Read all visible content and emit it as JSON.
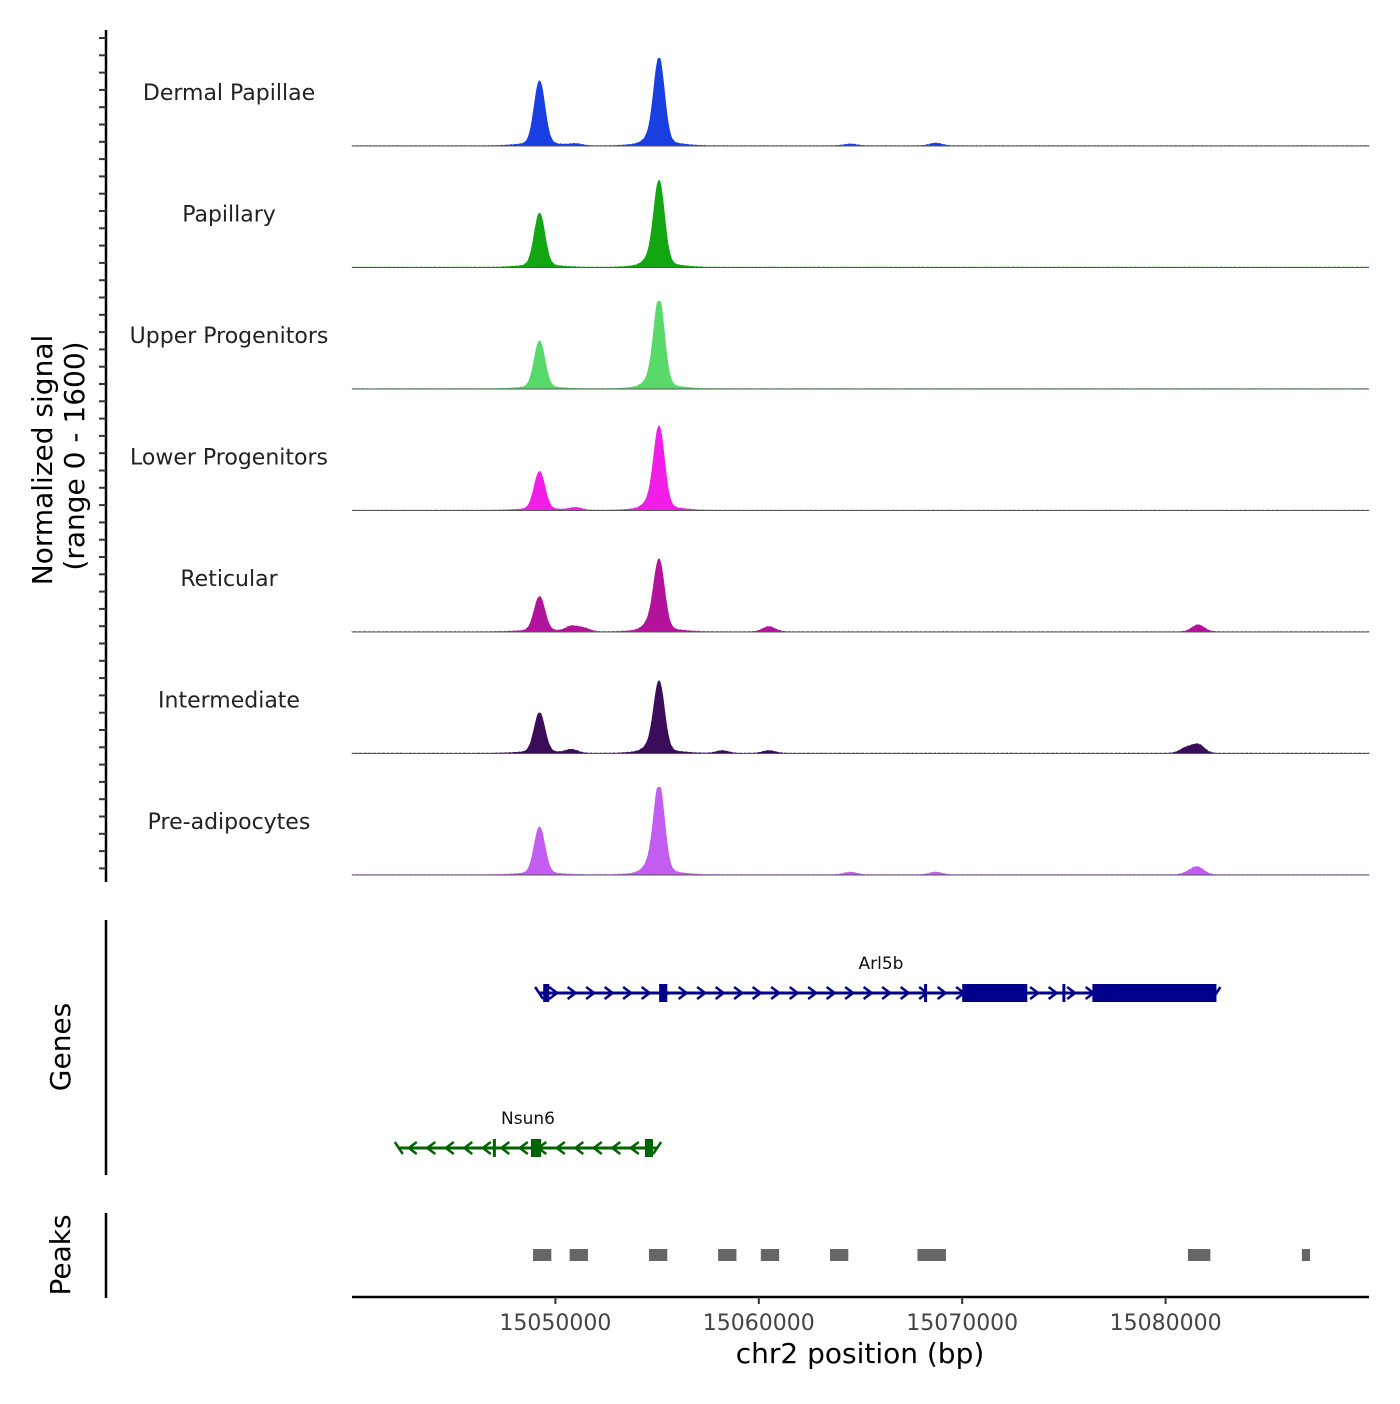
{
  "chart_data": {
    "type": "area",
    "title": "",
    "signal_axis_label_line1": "Normalized signal",
    "signal_axis_label_line2": "(range 0 - 1600)",
    "genes_axis_label": "Genes",
    "peaks_axis_label": "Peaks",
    "xlabel": "chr2 position (bp)",
    "xlim": [
      15040000,
      15090000
    ],
    "x_ticks": [
      15050000,
      15060000,
      15070000,
      15080000
    ],
    "x_tick_labels": [
      "15050000",
      "15060000",
      "15070000",
      "15080000"
    ],
    "signal_range": [
      0,
      1600
    ],
    "series": [
      {
        "name": "Dermal Papillae",
        "color": "#1a3fe0",
        "peaks": [
          [
            15049220,
            0.72
          ],
          [
            15051000,
            0.02
          ],
          [
            15055100,
            0.97
          ],
          [
            15054600,
            0.05
          ],
          [
            15064500,
            0.02
          ],
          [
            15068700,
            0.03
          ]
        ]
      },
      {
        "name": "Papillary",
        "color": "#12a612",
        "peaks": [
          [
            15049220,
            0.6
          ],
          [
            15055100,
            0.95
          ],
          [
            15054600,
            0.06
          ]
        ]
      },
      {
        "name": "Upper Progenitors",
        "color": "#58d96a",
        "peaks": [
          [
            15049220,
            0.53
          ],
          [
            15055100,
            1.0
          ],
          [
            15054600,
            0.06
          ]
        ]
      },
      {
        "name": "Lower Progenitors",
        "color": "#f01ee6",
        "peaks": [
          [
            15049220,
            0.43
          ],
          [
            15051000,
            0.03
          ],
          [
            15055100,
            0.92
          ],
          [
            15054600,
            0.06
          ]
        ]
      },
      {
        "name": "Reticular",
        "color": "#b3129a",
        "peaks": [
          [
            15049220,
            0.39
          ],
          [
            15050800,
            0.06
          ],
          [
            15051400,
            0.04
          ],
          [
            15055100,
            0.79
          ],
          [
            15054600,
            0.07
          ],
          [
            15060500,
            0.06
          ],
          [
            15081600,
            0.08
          ]
        ]
      },
      {
        "name": "Intermediate",
        "color": "#3a0c5a",
        "peaks": [
          [
            15049220,
            0.45
          ],
          [
            15050800,
            0.04
          ],
          [
            15055100,
            0.79
          ],
          [
            15054600,
            0.05
          ],
          [
            15058200,
            0.03
          ],
          [
            15060500,
            0.03
          ],
          [
            15081000,
            0.06
          ],
          [
            15081600,
            0.1
          ]
        ]
      },
      {
        "name": "Pre-adipocytes",
        "color": "#c35cf0",
        "peaks": [
          [
            15049220,
            0.53
          ],
          [
            15055100,
            1.0
          ],
          [
            15054600,
            0.08
          ],
          [
            15064500,
            0.03
          ],
          [
            15068700,
            0.03
          ],
          [
            15081600,
            0.08
          ],
          [
            15081200,
            0.03
          ]
        ]
      }
    ],
    "genes": [
      {
        "name": "Arl5b",
        "strand": "+",
        "color": "#00008b",
        "start": 15049200,
        "end": 15082500,
        "thick": [
          [
            15049400,
            15049700
          ],
          [
            15055100,
            15055500
          ],
          [
            15070000,
            15073200
          ],
          [
            15076400,
            15082500
          ]
        ],
        "ticks": [
          15068200,
          15075000
        ]
      },
      {
        "name": "Nsun6",
        "strand": "-",
        "color": "#006400",
        "start": 15042300,
        "end": 15055000,
        "thick": [
          [
            15048800,
            15049300
          ],
          [
            15054400,
            15054800
          ]
        ],
        "ticks": [
          15047000
        ]
      }
    ],
    "peak_regions": [
      [
        15048900,
        15049800
      ],
      [
        15050700,
        15051600
      ],
      [
        15054600,
        15055500
      ],
      [
        15058000,
        15058900
      ],
      [
        15060100,
        15061000
      ],
      [
        15063500,
        15064400
      ],
      [
        15067800,
        15069200
      ],
      [
        15081100,
        15082200
      ],
      [
        15086700,
        15087100
      ]
    ]
  }
}
